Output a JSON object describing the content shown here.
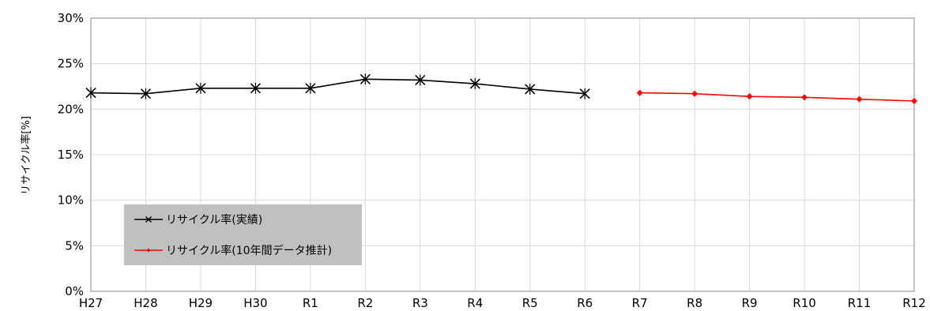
{
  "chart_data": {
    "type": "line",
    "title": "",
    "xlabel": "",
    "ylabel": "リサイクル率[%]",
    "categories": [
      "H27",
      "H28",
      "H29",
      "H30",
      "R1",
      "R2",
      "R3",
      "R4",
      "R5",
      "R6",
      "R7",
      "R8",
      "R9",
      "R10",
      "R11",
      "R12"
    ],
    "ylim": [
      0,
      30
    ],
    "yticks": [
      "0%",
      "5%",
      "10%",
      "15%",
      "20%",
      "25%",
      "30%"
    ],
    "grid": true,
    "legend_position": "bottom-left",
    "legend_background": "#c0c0c0",
    "series": [
      {
        "name": "リサイクル率(実績)",
        "color": "#000000",
        "marker": "x",
        "values": [
          21.8,
          21.7,
          22.3,
          22.3,
          22.3,
          23.3,
          23.2,
          22.8,
          22.2,
          21.7,
          null,
          null,
          null,
          null,
          null,
          null
        ]
      },
      {
        "name": "リサイクル率(10年間データ推計)",
        "color": "#ff0000",
        "marker": "diamond",
        "values": [
          null,
          null,
          null,
          null,
          null,
          null,
          null,
          null,
          null,
          null,
          21.8,
          21.7,
          21.4,
          21.3,
          21.1,
          20.9
        ]
      }
    ]
  }
}
